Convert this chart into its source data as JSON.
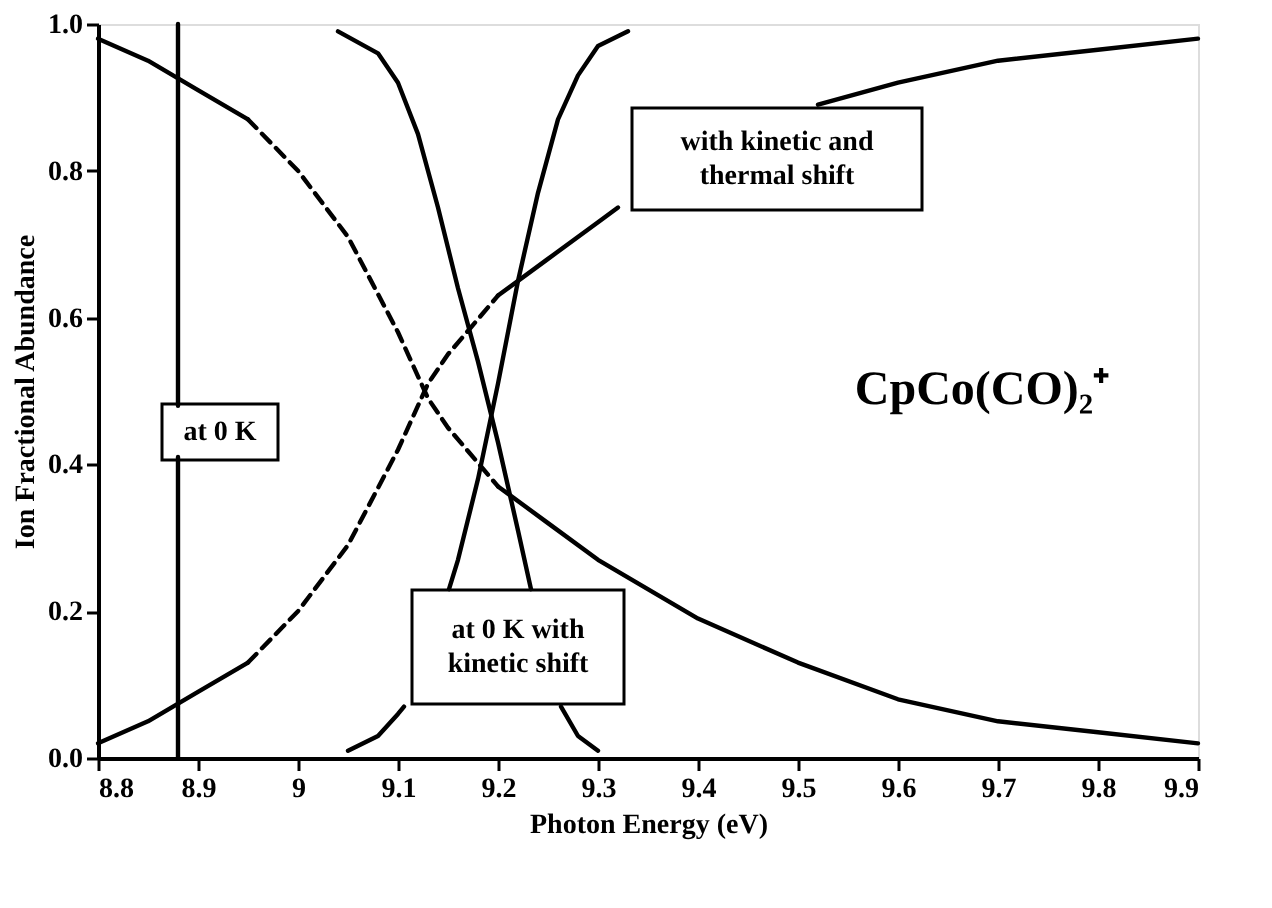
{
  "chart_data": {
    "type": "line",
    "xlabel": "Photon Energy (eV)",
    "ylabel": "Ion Fractional Abundance",
    "xlim": [
      8.8,
      9.9
    ],
    "ylim": [
      0,
      1
    ],
    "xticks": [
      8.8,
      8.9,
      {
        "value": 9,
        "label": "9"
      },
      9.1,
      9.2,
      9.3,
      9.4,
      9.5,
      9.6,
      9.7,
      9.8,
      9.9
    ],
    "yticks": [
      {
        "value": 0,
        "label": "0.0"
      },
      {
        "value": 0.2,
        "label": "0.2"
      },
      {
        "value": 0.4,
        "label": "0.4"
      },
      {
        "value": 0.6,
        "label": "0.6"
      },
      {
        "value": 0.8,
        "label": "0.8"
      },
      {
        "value": 1,
        "label": "1.0"
      }
    ],
    "grid": false,
    "marker": "none",
    "series": [
      {
        "color": "#000000",
        "line_style": "solid",
        "x": [
          8.88,
          8.88
        ],
        "values": [
          0,
          0.41
        ]
      },
      {
        "color": "#000000",
        "line_style": "solid",
        "x": [
          8.88,
          8.88
        ],
        "values": [
          0.48,
          1
        ]
      },
      {
        "color": "#000000",
        "line_style": "solid",
        "x": [
          9.04,
          9.08,
          9.1,
          9.12,
          9.14,
          9.16,
          9.18,
          9.2,
          9.22,
          9.233,
          9.25,
          9.263,
          9.28,
          9.3
        ],
        "values": [
          0.99,
          0.96,
          0.92,
          0.85,
          0.75,
          0.64,
          0.54,
          0.43,
          0.31,
          0.23,
          null,
          0.07,
          0.03,
          0.01
        ]
      },
      {
        "color": "#000000",
        "line_style": "solid",
        "x": [
          9.05,
          9.08,
          9.1,
          9.106,
          9.13,
          9.151,
          9.16,
          9.18,
          9.2,
          9.22,
          9.24,
          9.26,
          9.28,
          9.3,
          9.33
        ],
        "values": [
          0.01,
          0.03,
          0.06,
          0.07,
          null,
          0.23,
          0.27,
          0.38,
          0.51,
          0.65,
          0.77,
          0.87,
          0.93,
          0.97,
          0.99
        ]
      },
      {
        "color": "#000000",
        "line_style": "solid",
        "x": [
          8.8,
          8.85,
          8.9,
          8.95
        ],
        "values": [
          0.98,
          0.95,
          0.91,
          0.87
        ]
      },
      {
        "color": "#000000",
        "line_style": "dashed",
        "x": [
          8.95,
          9.0,
          9.05,
          9.1,
          9.13,
          9.15,
          9.2
        ],
        "values": [
          0.87,
          0.8,
          0.71,
          0.58,
          0.49,
          0.45,
          0.37
        ]
      },
      {
        "color": "#000000",
        "line_style": "solid",
        "x": [
          9.2,
          9.25,
          9.3,
          9.4,
          9.5,
          9.6,
          9.7,
          9.8,
          9.9
        ],
        "values": [
          0.37,
          0.32,
          0.27,
          0.19,
          0.13,
          0.08,
          0.05,
          0.035,
          0.02
        ]
      },
      {
        "color": "#000000",
        "line_style": "solid",
        "x": [
          8.8,
          8.85,
          8.9,
          8.95
        ],
        "values": [
          0.02,
          0.05,
          0.09,
          0.13
        ]
      },
      {
        "color": "#000000",
        "line_style": "dashed",
        "x": [
          8.95,
          9.0,
          9.05,
          9.1,
          9.13,
          9.15,
          9.2
        ],
        "values": [
          0.13,
          0.2,
          0.29,
          0.42,
          0.51,
          0.55,
          0.63
        ]
      },
      {
        "color": "#000000",
        "line_style": "solid",
        "x": [
          9.2,
          9.25,
          9.3,
          9.32,
          9.4,
          9.52,
          9.6,
          9.7,
          9.8,
          9.9
        ],
        "values": [
          0.63,
          0.68,
          0.73,
          0.75,
          null,
          0.89,
          0.92,
          0.95,
          0.965,
          0.98
        ]
      }
    ],
    "annotations": [
      "at 0 K",
      "at 0 K with\nkinetic shift",
      "with kinetic and\nthermal shift",
      "CpCo(CO)₂⁺"
    ]
  }
}
